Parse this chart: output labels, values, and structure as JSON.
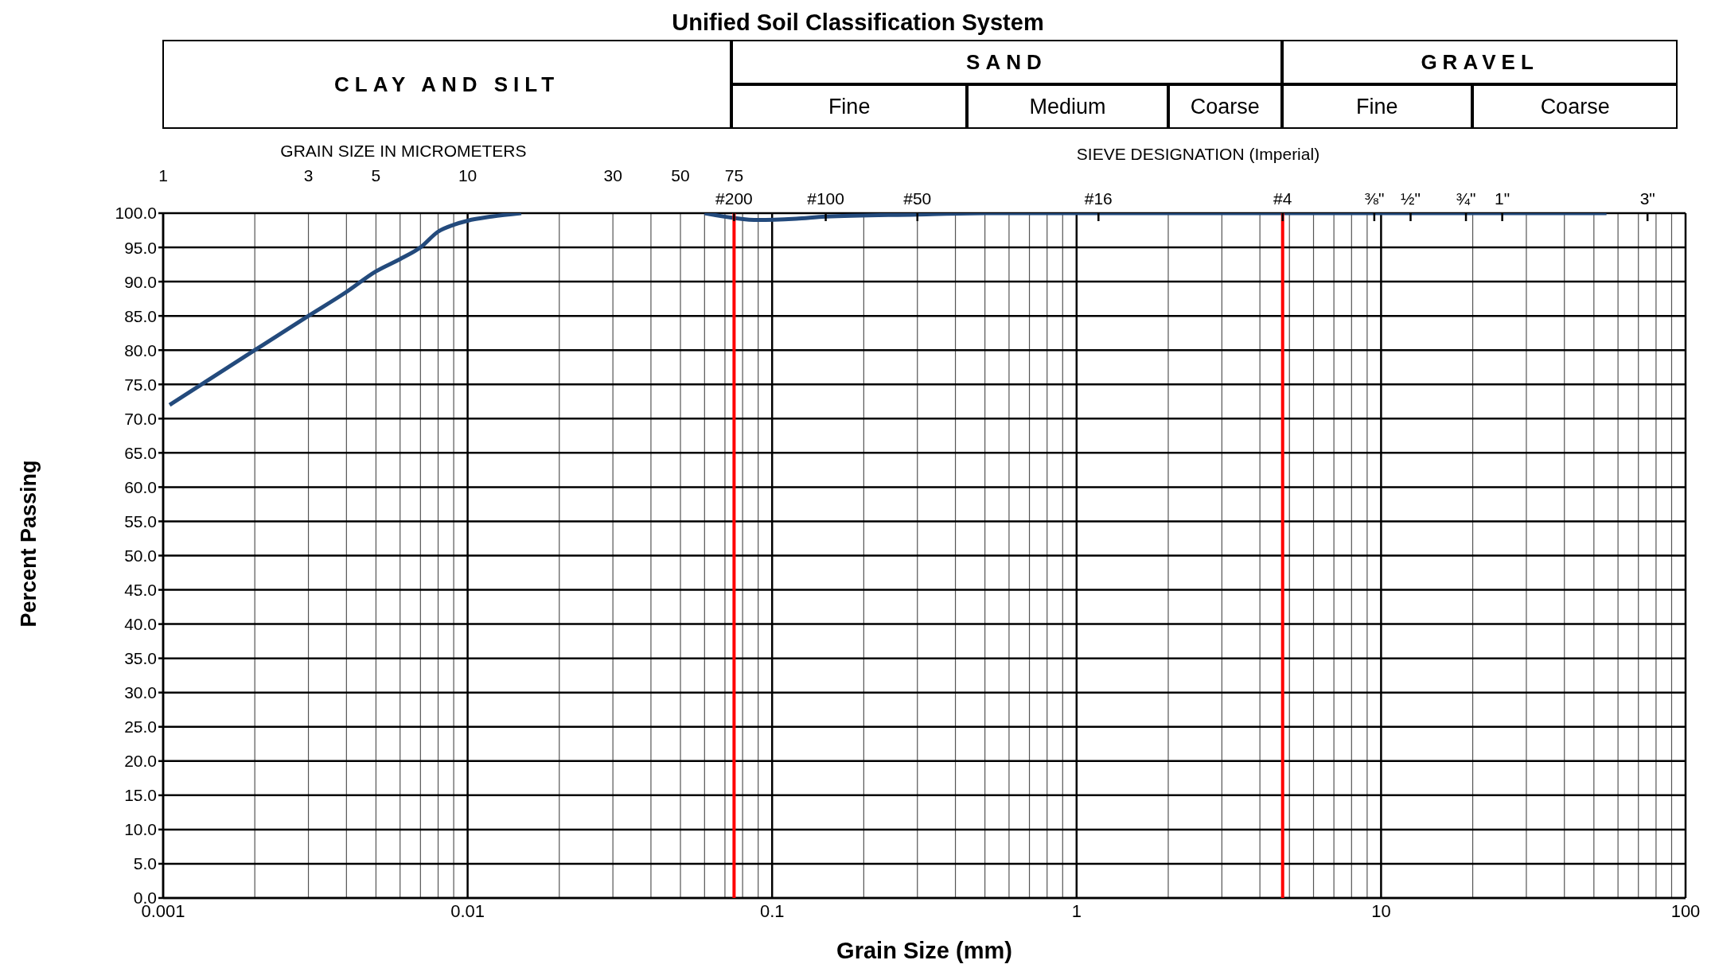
{
  "chart_data": {
    "type": "line",
    "title": "Unified Soil Classification System",
    "xlabel": "Grain Size (mm)",
    "ylabel": "Percent  Passing",
    "log": "x",
    "grid": true,
    "marker": "none",
    "line_style": "solid",
    "series": [
      {
        "color": "#234a7c",
        "x": [
          0.00105,
          0.002,
          0.003,
          0.004,
          0.005,
          0.006,
          0.007,
          0.008,
          0.009,
          0.01,
          0.012,
          0.015,
          0.03,
          0.06,
          0.075,
          0.09,
          0.12,
          0.15,
          0.3,
          0.5,
          1,
          55
        ],
        "values": [
          72,
          80,
          85,
          88.5,
          91.5,
          93.3,
          95,
          97.3,
          98.3,
          98.9,
          99.5,
          100,
          null,
          100,
          99.3,
          99,
          99.2,
          99.5,
          99.8,
          100,
          100,
          100
        ]
      }
    ],
    "xlim": [
      0.001,
      100
    ],
    "xticks": [
      0.001,
      0.01,
      0.1,
      1,
      10,
      100
    ],
    "ylim": [
      0,
      100
    ],
    "yticks": [
      {
        "value": 0,
        "label": "0.0"
      },
      {
        "value": 5,
        "label": "5.0"
      },
      {
        "value": 10,
        "label": "10.0"
      },
      {
        "value": 15,
        "label": "15.0"
      },
      {
        "value": 20,
        "label": "20.0"
      },
      {
        "value": 25,
        "label": "25.0"
      },
      {
        "value": 30,
        "label": "30.0"
      },
      {
        "value": 35,
        "label": "35.0"
      },
      {
        "value": 40,
        "label": "40.0"
      },
      {
        "value": 45,
        "label": "45.0"
      },
      {
        "value": 50,
        "label": "50.0"
      },
      {
        "value": 55,
        "label": "55.0"
      },
      {
        "value": 60,
        "label": "60.0"
      },
      {
        "value": 65,
        "label": "65.0"
      },
      {
        "value": 70,
        "label": "70.0"
      },
      {
        "value": 75,
        "label": "75.0"
      },
      {
        "value": 80,
        "label": "80.0"
      },
      {
        "value": 85,
        "label": "85.0"
      },
      {
        "value": 90,
        "label": "90.0"
      },
      {
        "value": 95,
        "label": "95.0"
      },
      {
        "value": 100,
        "label": "100.0"
      }
    ],
    "ref_lines": [
      {
        "axis": "x",
        "value": 0.075,
        "color": "#ff0000"
      },
      {
        "axis": "x",
        "value": 4.75,
        "color": "#ff0000"
      }
    ],
    "annotations": [
      "CLAY AND SILT",
      "SAND",
      "GRAVEL",
      "Fine",
      "Medium",
      "Coarse",
      "Fine",
      "Coarse",
      "GRAIN SIZE IN MICROMETERS",
      "SIEVE DESIGNATION (Imperial)",
      "1",
      "3",
      "5",
      "10",
      "30",
      "50",
      "75",
      "#200",
      "#100",
      "#50",
      "#16",
      "#4",
      "⅜\"",
      "½\"",
      "¾\"",
      "1\"",
      "3\""
    ]
  }
}
